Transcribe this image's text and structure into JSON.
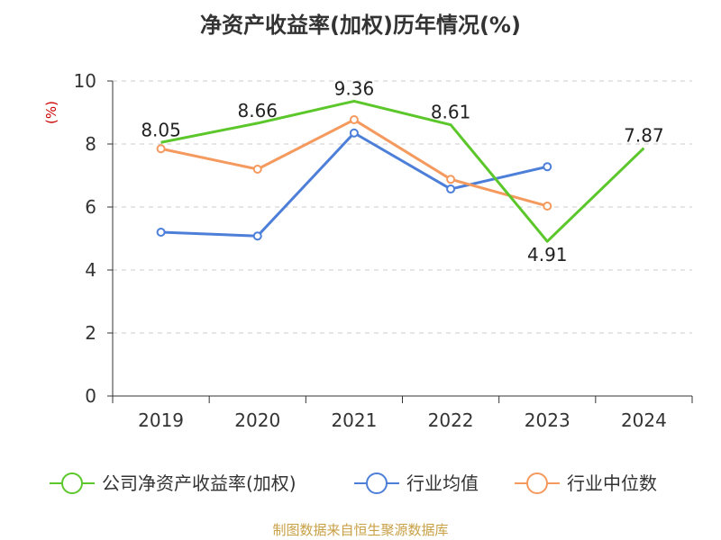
{
  "chart_data": {
    "type": "line",
    "title": "净资产收益率(加权)历年情况(%)",
    "ylabel": "(%)",
    "categories": [
      "2019",
      "2020",
      "2021",
      "2022",
      "2023",
      "2024"
    ],
    "ylim": [
      0,
      10
    ],
    "yticks": [
      0,
      2,
      4,
      6,
      8,
      10
    ],
    "grid": true,
    "legend_position": "bottom",
    "series": [
      {
        "name": "公司净资产收益率(加权)",
        "color": "#5cc72b",
        "values": [
          8.05,
          8.66,
          9.36,
          8.61,
          4.91,
          7.87
        ],
        "labels": [
          "8.05",
          "8.66",
          "9.36",
          "8.61",
          "4.91",
          "7.87"
        ],
        "show_markers": false
      },
      {
        "name": "行业均值",
        "color": "#4d7fd9",
        "values": [
          5.2,
          5.08,
          8.35,
          6.57,
          7.28,
          null
        ],
        "show_markers": true
      },
      {
        "name": "行业中位数",
        "color": "#f59a5e",
        "values": [
          7.85,
          7.2,
          8.77,
          6.88,
          6.03,
          null
        ],
        "show_markers": true
      }
    ]
  },
  "source": "制图数据来自恒生聚源数据库",
  "colors": {
    "unit": "#cc0000",
    "axis": "#333333",
    "grid": "#cccccc"
  }
}
